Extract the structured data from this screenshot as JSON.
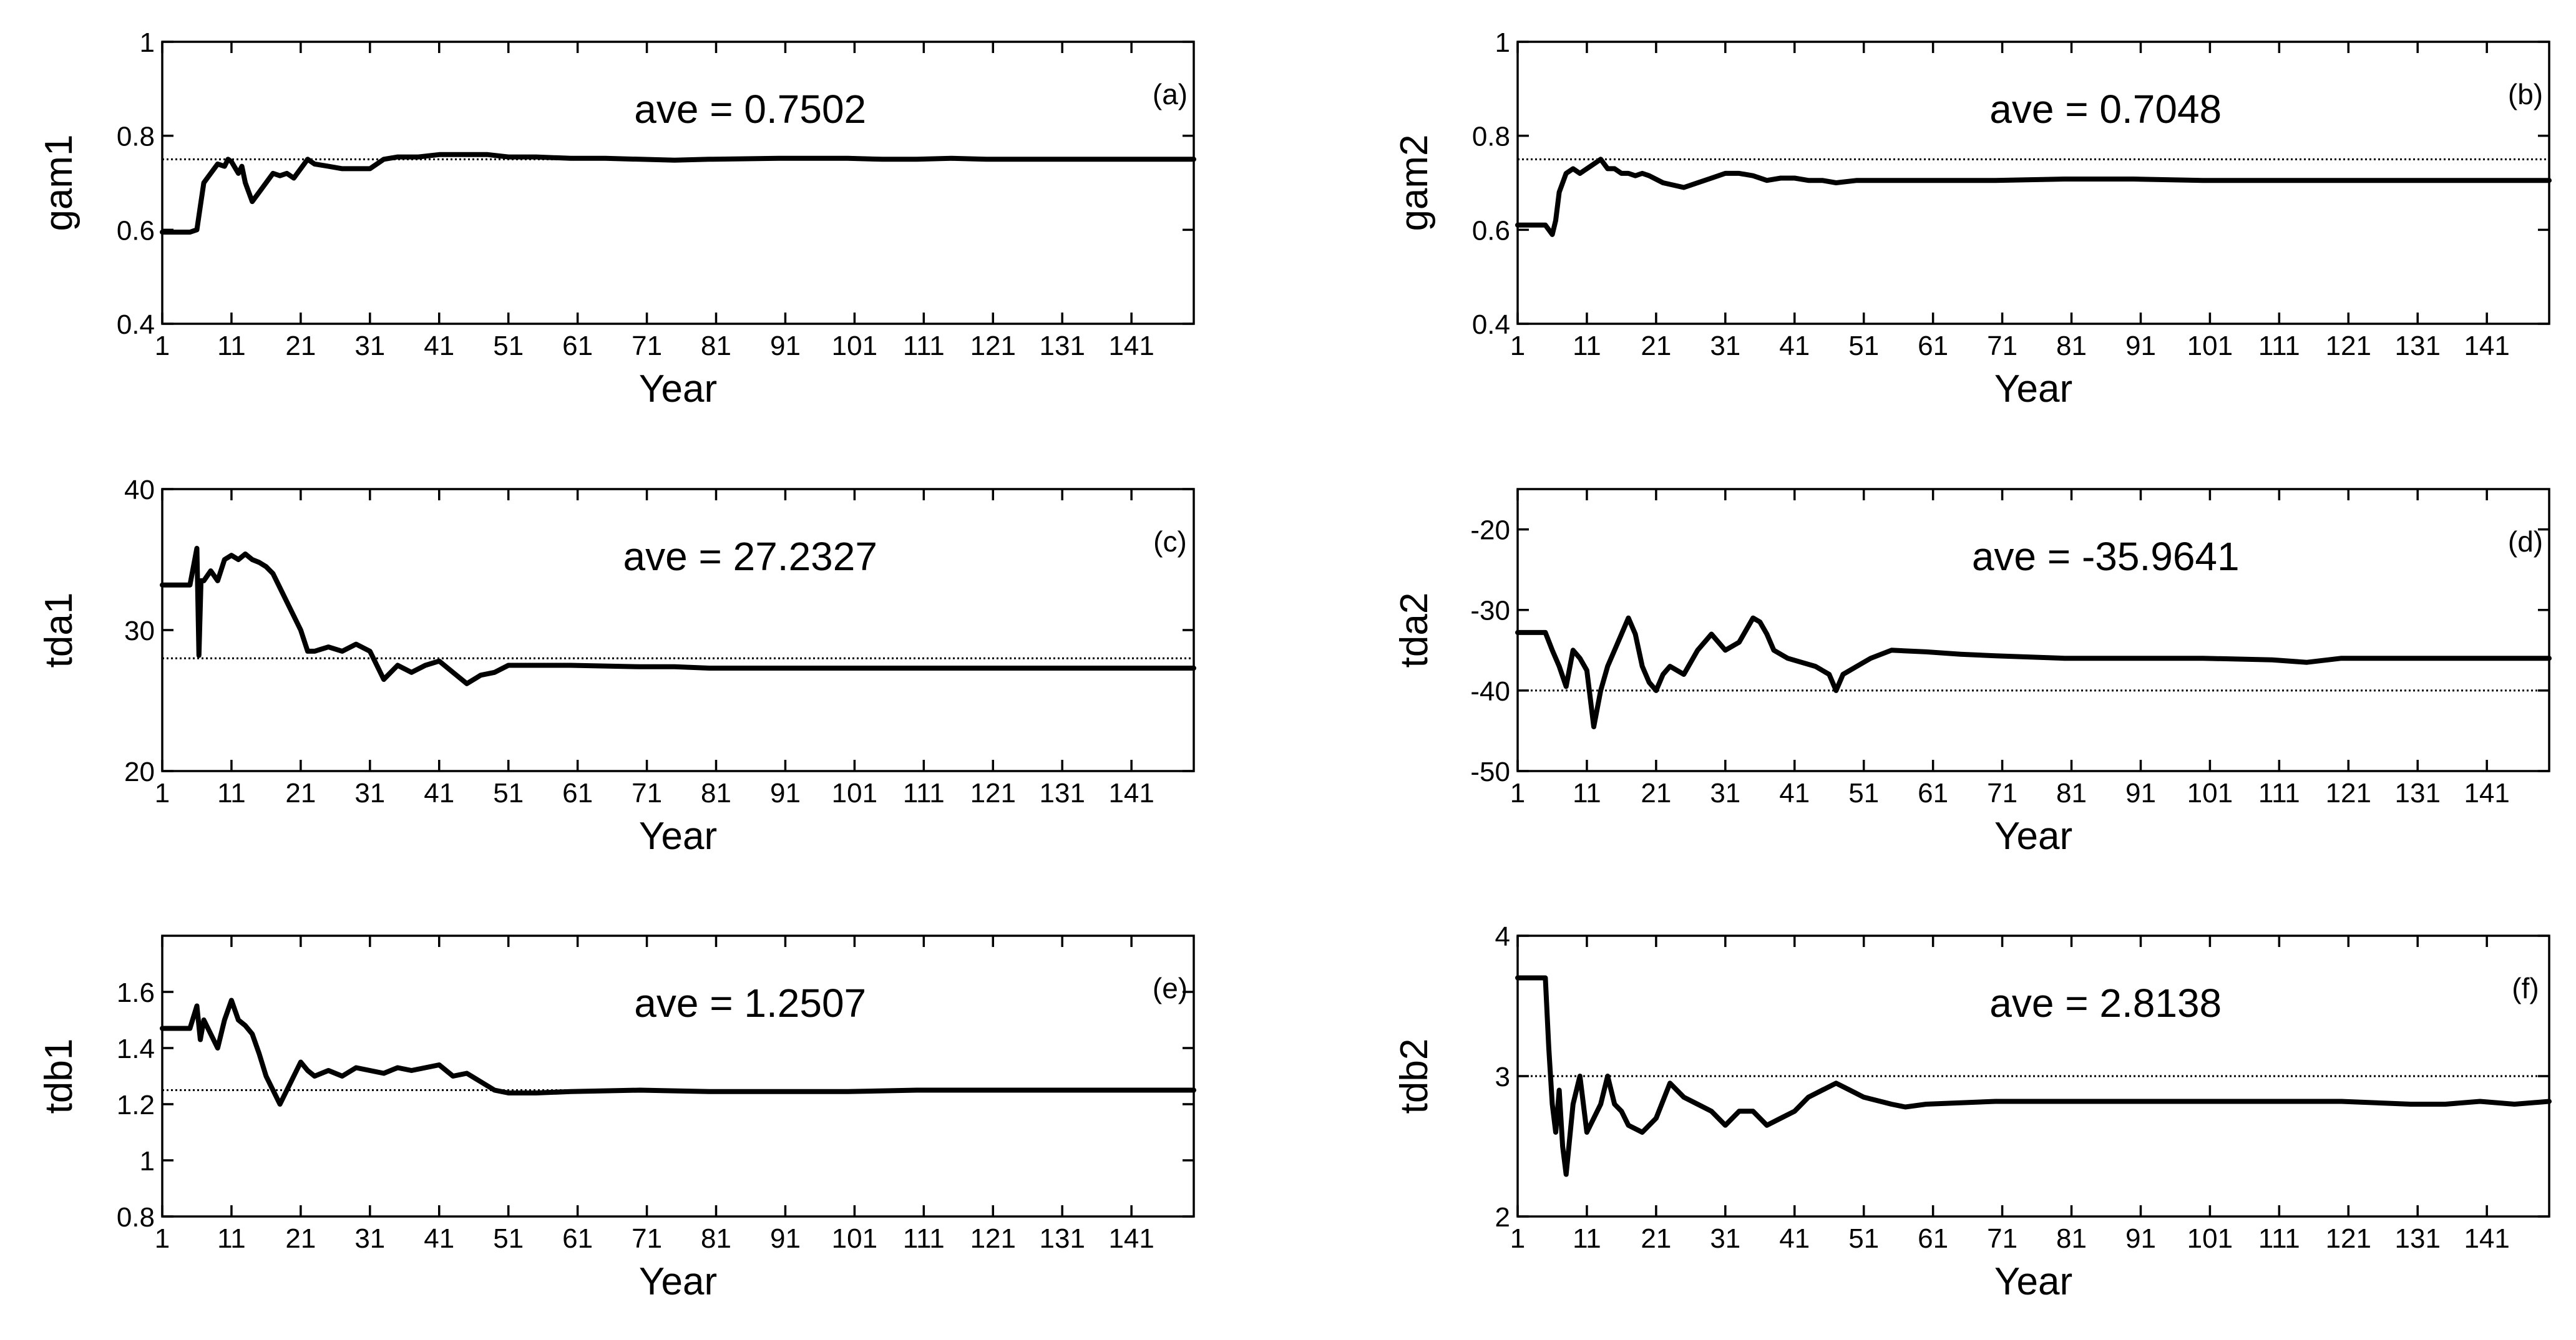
{
  "chart_data": [
    {
      "panel_label": "(a)",
      "type": "line",
      "ylabel": "gam1",
      "xlabel": "Year",
      "annotation": "ave = 0.7502",
      "xlim": [
        1,
        150
      ],
      "ylim": [
        0.4,
        1.0
      ],
      "xticks": [
        1,
        11,
        21,
        31,
        41,
        51,
        61,
        71,
        81,
        91,
        101,
        111,
        121,
        131,
        141
      ],
      "yticks": [
        0.4,
        0.6,
        0.8,
        1
      ],
      "ytick_labels": [
        "0.4",
        "0.6",
        "0.8",
        "1"
      ],
      "reference_line": 0.75,
      "x": [
        1,
        5,
        6,
        6.5,
        7,
        8,
        9,
        10,
        10.5,
        11,
        12,
        12.5,
        13,
        14,
        15,
        16,
        17,
        18,
        19,
        20,
        21,
        22,
        23,
        25,
        27,
        29,
        31,
        33,
        35,
        38,
        41,
        45,
        48,
        51,
        55,
        60,
        65,
        70,
        75,
        80,
        90,
        100,
        105,
        110,
        115,
        120,
        130,
        140,
        150
      ],
      "y": [
        0.595,
        0.595,
        0.6,
        0.65,
        0.7,
        0.72,
        0.74,
        0.735,
        0.75,
        0.745,
        0.72,
        0.735,
        0.7,
        0.66,
        0.68,
        0.7,
        0.72,
        0.715,
        0.72,
        0.71,
        0.73,
        0.75,
        0.74,
        0.735,
        0.73,
        0.73,
        0.73,
        0.75,
        0.755,
        0.755,
        0.76,
        0.76,
        0.76,
        0.755,
        0.755,
        0.752,
        0.752,
        0.75,
        0.748,
        0.75,
        0.752,
        0.752,
        0.75,
        0.75,
        0.752,
        0.75,
        0.75,
        0.75,
        0.75
      ]
    },
    {
      "panel_label": "(b)",
      "type": "line",
      "ylabel": "gam2",
      "xlabel": "Year",
      "annotation": "ave = 0.7048",
      "xlim": [
        1,
        150
      ],
      "ylim": [
        0.4,
        1.0
      ],
      "xticks": [
        1,
        11,
        21,
        31,
        41,
        51,
        61,
        71,
        81,
        91,
        101,
        111,
        121,
        131,
        141
      ],
      "yticks": [
        0.4,
        0.6,
        0.8,
        1
      ],
      "ytick_labels": [
        "0.4",
        "0.6",
        "0.8",
        "1"
      ],
      "reference_line": 0.75,
      "x": [
        1,
        5,
        6,
        6.5,
        7,
        8,
        9,
        10,
        11,
        12,
        13,
        14,
        15,
        16,
        17,
        18,
        19,
        20,
        22,
        25,
        27,
        29,
        31,
        33,
        35,
        37,
        39,
        41,
        43,
        45,
        47,
        50,
        55,
        60,
        70,
        80,
        90,
        100,
        110,
        120,
        130,
        140,
        150
      ],
      "y": [
        0.61,
        0.61,
        0.59,
        0.62,
        0.68,
        0.72,
        0.73,
        0.72,
        0.73,
        0.74,
        0.75,
        0.73,
        0.73,
        0.72,
        0.72,
        0.715,
        0.72,
        0.715,
        0.7,
        0.69,
        0.7,
        0.71,
        0.72,
        0.72,
        0.715,
        0.705,
        0.71,
        0.71,
        0.705,
        0.705,
        0.7,
        0.705,
        0.705,
        0.705,
        0.705,
        0.708,
        0.708,
        0.705,
        0.705,
        0.705,
        0.705,
        0.705,
        0.705
      ]
    },
    {
      "panel_label": "(c)",
      "type": "line",
      "ylabel": "tda1",
      "xlabel": "Year",
      "annotation": "ave = 27.2327",
      "xlim": [
        1,
        150
      ],
      "ylim": [
        20,
        40
      ],
      "xticks": [
        1,
        11,
        21,
        31,
        41,
        51,
        61,
        71,
        81,
        91,
        101,
        111,
        121,
        131,
        141
      ],
      "yticks": [
        20,
        30,
        40
      ],
      "ytick_labels": [
        "20",
        "30",
        "40"
      ],
      "reference_line": 28,
      "x": [
        1,
        5,
        6,
        6.3,
        6.6,
        7,
        8,
        9,
        10,
        11,
        12,
        13,
        14,
        15,
        16,
        17,
        18,
        19,
        20,
        21,
        22,
        23,
        25,
        27,
        29,
        31,
        33,
        35,
        37,
        39,
        41,
        43,
        45,
        47,
        49,
        51,
        55,
        60,
        70,
        75,
        80,
        90,
        100,
        110,
        120,
        130,
        140,
        150
      ],
      "y": [
        33.2,
        33.2,
        35.8,
        28.2,
        33.5,
        33.5,
        34.2,
        33.5,
        35.0,
        35.3,
        35.0,
        35.4,
        35.0,
        34.8,
        34.5,
        34.0,
        33.0,
        32.0,
        31.0,
        30.0,
        28.5,
        28.5,
        28.8,
        28.5,
        29.0,
        28.5,
        26.5,
        27.5,
        27.0,
        27.5,
        27.8,
        27.0,
        26.2,
        26.8,
        27.0,
        27.5,
        27.5,
        27.5,
        27.4,
        27.4,
        27.3,
        27.3,
        27.3,
        27.3,
        27.3,
        27.3,
        27.3,
        27.3
      ]
    },
    {
      "panel_label": "(d)",
      "type": "line",
      "ylabel": "tda2",
      "xlabel": "Year",
      "annotation": "ave = -35.9641",
      "xlim": [
        1,
        150
      ],
      "ylim": [
        -50,
        -15
      ],
      "xticks": [
        1,
        11,
        21,
        31,
        41,
        51,
        61,
        71,
        81,
        91,
        101,
        111,
        121,
        131,
        141
      ],
      "yticks": [
        -50,
        -40,
        -30,
        -20
      ],
      "ytick_labels": [
        "-50",
        "-40",
        "-30",
        "-20"
      ],
      "reference_line": -40,
      "x": [
        1,
        5,
        6,
        7,
        8,
        9,
        10,
        11,
        12,
        13,
        14,
        15,
        16,
        17,
        18,
        19,
        20,
        21,
        22,
        23,
        25,
        27,
        29,
        31,
        33,
        35,
        36,
        37,
        38,
        40,
        42,
        44,
        46,
        47,
        48,
        50,
        52,
        55,
        60,
        65,
        70,
        80,
        90,
        100,
        110,
        115,
        120,
        130,
        140,
        150
      ],
      "y": [
        -32.8,
        -32.8,
        -35.0,
        -37.0,
        -39.5,
        -35.0,
        -36.0,
        -37.5,
        -44.5,
        -40.0,
        -37.0,
        -35.0,
        -33.0,
        -31.0,
        -33.0,
        -37.0,
        -39.0,
        -40.0,
        -38.0,
        -37.0,
        -38.0,
        -35.0,
        -33.0,
        -35.0,
        -34.0,
        -31.0,
        -31.5,
        -33.0,
        -35.0,
        -36.0,
        -36.5,
        -37.0,
        -38.0,
        -40.0,
        -38.0,
        -37.0,
        -36.0,
        -35.0,
        -35.2,
        -35.5,
        -35.7,
        -36.0,
        -36.0,
        -36.0,
        -36.2,
        -36.5,
        -36.0,
        -36.0,
        -36.0,
        -36.0
      ]
    },
    {
      "panel_label": "(e)",
      "type": "line",
      "ylabel": "tdb1",
      "xlabel": "Year",
      "annotation": "ave = 1.2507",
      "xlim": [
        1,
        150
      ],
      "ylim": [
        0.8,
        1.8
      ],
      "xticks": [
        1,
        11,
        21,
        31,
        41,
        51,
        61,
        71,
        81,
        91,
        101,
        111,
        121,
        131,
        141
      ],
      "yticks": [
        0.8,
        1,
        1.2,
        1.4,
        1.6
      ],
      "ytick_labels": [
        "0.8",
        "1",
        "1.2",
        "1.4",
        "1.6"
      ],
      "reference_line": 1.25,
      "x": [
        1,
        5,
        6,
        6.5,
        7,
        8,
        9,
        10,
        11,
        12,
        13,
        14,
        15,
        16,
        17,
        18,
        19,
        20,
        21,
        22,
        23,
        25,
        27,
        29,
        31,
        33,
        35,
        37,
        39,
        41,
        43,
        45,
        47,
        49,
        51,
        55,
        60,
        70,
        80,
        90,
        100,
        110,
        120,
        130,
        140,
        150
      ],
      "y": [
        1.47,
        1.47,
        1.55,
        1.43,
        1.5,
        1.45,
        1.4,
        1.5,
        1.57,
        1.5,
        1.48,
        1.45,
        1.38,
        1.3,
        1.25,
        1.2,
        1.25,
        1.3,
        1.35,
        1.32,
        1.3,
        1.32,
        1.3,
        1.33,
        1.32,
        1.31,
        1.33,
        1.32,
        1.33,
        1.34,
        1.3,
        1.31,
        1.28,
        1.25,
        1.24,
        1.24,
        1.245,
        1.25,
        1.245,
        1.245,
        1.245,
        1.25,
        1.25,
        1.25,
        1.25,
        1.25
      ]
    },
    {
      "panel_label": "(f)",
      "type": "line",
      "ylabel": "tdb2",
      "xlabel": "Year",
      "annotation": "ave = 2.8138",
      "xlim": [
        1,
        150
      ],
      "ylim": [
        2,
        4
      ],
      "xticks": [
        1,
        11,
        21,
        31,
        41,
        51,
        61,
        71,
        81,
        91,
        101,
        111,
        121,
        131,
        141
      ],
      "yticks": [
        2,
        3,
        4
      ],
      "ytick_labels": [
        "2",
        "3",
        "4"
      ],
      "reference_line": 3,
      "x": [
        1,
        5,
        5.5,
        6,
        6.5,
        7,
        7.5,
        8,
        9,
        10,
        11,
        12,
        13,
        14,
        15,
        16,
        17,
        19,
        21,
        23,
        25,
        27,
        29,
        31,
        33,
        35,
        37,
        39,
        41,
        43,
        45,
        47,
        49,
        51,
        55,
        57,
        60,
        70,
        80,
        90,
        100,
        110,
        120,
        130,
        135,
        140,
        145,
        150
      ],
      "y": [
        3.7,
        3.7,
        3.2,
        2.8,
        2.6,
        2.9,
        2.5,
        2.3,
        2.8,
        3.0,
        2.6,
        2.7,
        2.8,
        3.0,
        2.8,
        2.75,
        2.65,
        2.6,
        2.7,
        2.95,
        2.85,
        2.8,
        2.75,
        2.65,
        2.75,
        2.75,
        2.65,
        2.7,
        2.75,
        2.85,
        2.9,
        2.95,
        2.9,
        2.85,
        2.8,
        2.78,
        2.8,
        2.82,
        2.82,
        2.82,
        2.82,
        2.82,
        2.82,
        2.8,
        2.8,
        2.82,
        2.8,
        2.82
      ]
    }
  ]
}
